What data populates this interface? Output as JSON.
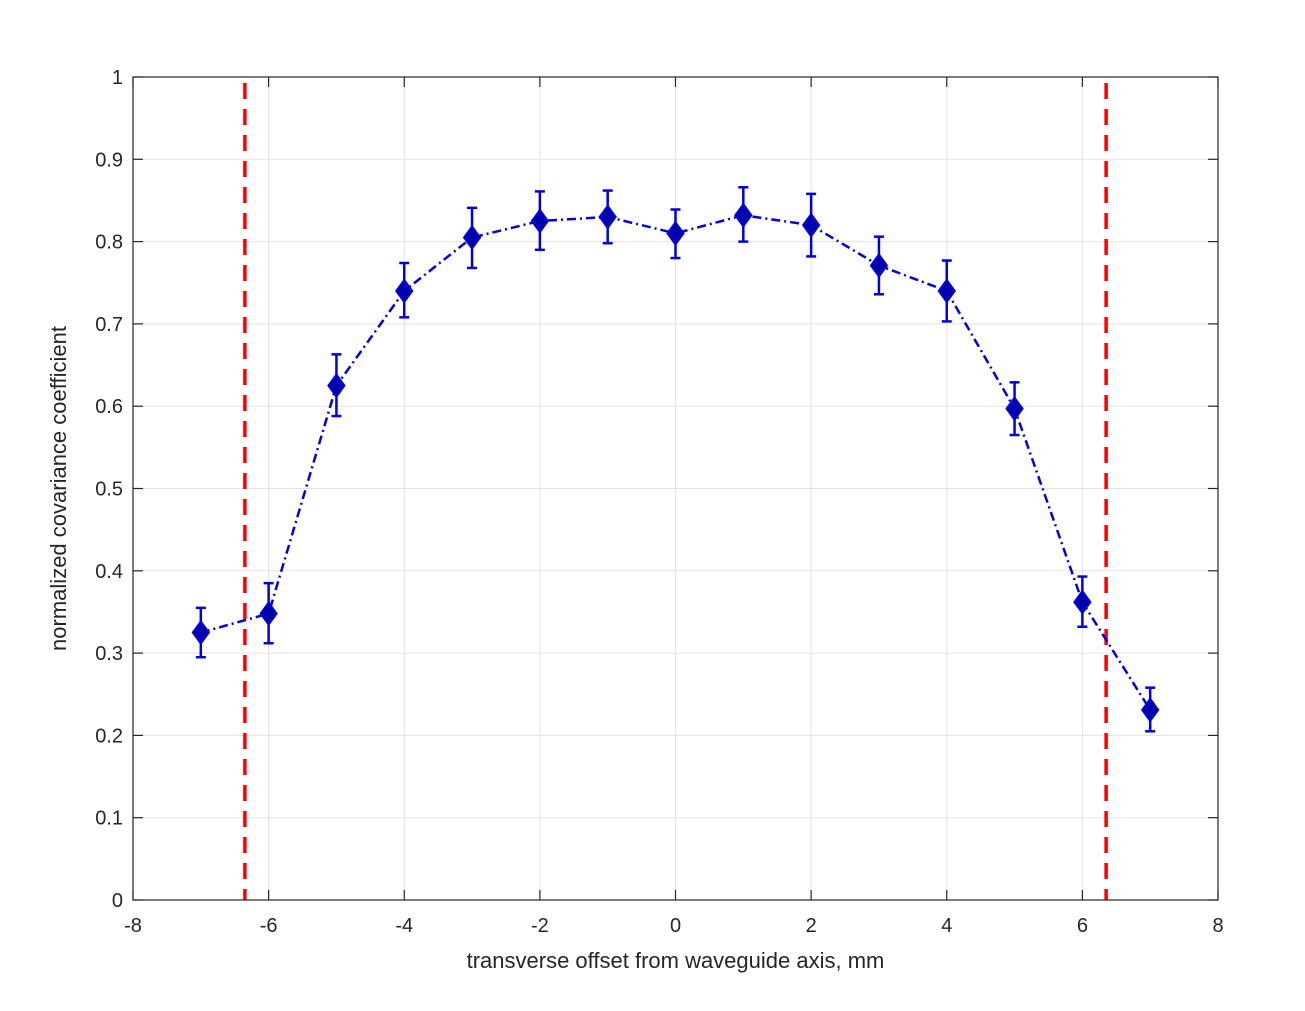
{
  "chart_data": {
    "type": "line",
    "title": "",
    "xlabel": "transverse offset from waveguide axis, mm",
    "ylabel": "normalized covariance coefficient",
    "xlim": [
      -8,
      8
    ],
    "ylim": [
      0,
      1
    ],
    "xticks": [
      -8,
      -6,
      -4,
      -2,
      0,
      2,
      4,
      6,
      8
    ],
    "xtick_labels": [
      "-8",
      "-6",
      "-4",
      "-2",
      "0",
      "2",
      "4",
      "6",
      "8"
    ],
    "yticks": [
      0,
      0.1,
      0.2,
      0.3,
      0.4,
      0.5,
      0.6,
      0.7,
      0.8,
      0.9,
      1
    ],
    "ytick_labels": [
      "0",
      "0.1",
      "0.2",
      "0.3",
      "0.4",
      "0.5",
      "0.6",
      "0.7",
      "0.8",
      "0.9",
      "1"
    ],
    "grid": true,
    "series": [
      {
        "color": "#0000e0",
        "line_style": "dash-dot",
        "marker": "diamond",
        "x": [
          -7,
          -6,
          -5,
          -4,
          -3,
          -2,
          -1,
          0,
          1,
          2,
          3,
          4,
          5,
          6,
          7
        ],
        "y": [
          0.325,
          0.348,
          0.625,
          0.74,
          0.805,
          0.825,
          0.83,
          0.81,
          0.832,
          0.82,
          0.771,
          0.74,
          0.597,
          0.362,
          0.231
        ],
        "y_err_low": [
          0.295,
          0.312,
          0.588,
          0.708,
          0.768,
          0.79,
          0.798,
          0.78,
          0.8,
          0.782,
          0.736,
          0.703,
          0.565,
          0.332,
          0.205
        ],
        "y_err_high": [
          0.355,
          0.385,
          0.663,
          0.774,
          0.841,
          0.861,
          0.862,
          0.839,
          0.866,
          0.858,
          0.806,
          0.777,
          0.629,
          0.393,
          0.258
        ]
      }
    ],
    "reference_lines": [
      {
        "orientation": "vertical",
        "x": -6.35,
        "color": "#ff0000",
        "line_style": "dashed"
      },
      {
        "orientation": "vertical",
        "x": 6.35,
        "color": "#ff0000",
        "line_style": "dashed"
      }
    ]
  }
}
